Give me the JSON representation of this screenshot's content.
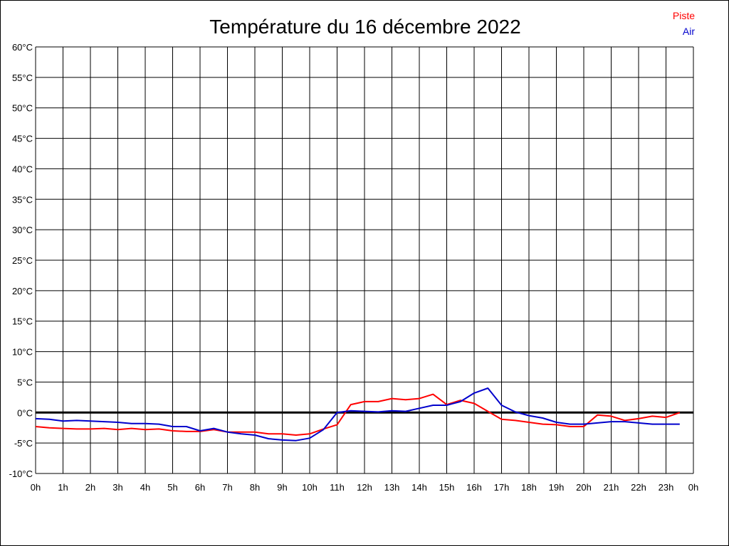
{
  "chart_data": {
    "type": "line",
    "title": "Température du 16 décembre 2022",
    "xlabel": "",
    "ylabel": "",
    "ylim": [
      -10,
      60
    ],
    "xlim": [
      0,
      24
    ],
    "grid": true,
    "legend_position": "top-right",
    "x_ticks": [
      "0h",
      "1h",
      "2h",
      "3h",
      "4h",
      "5h",
      "6h",
      "7h",
      "8h",
      "9h",
      "10h",
      "11h",
      "12h",
      "13h",
      "14h",
      "15h",
      "16h",
      "17h",
      "18h",
      "19h",
      "20h",
      "21h",
      "22h",
      "23h",
      "0h"
    ],
    "y_ticks": [
      "60°C",
      "55°C",
      "50°C",
      "45°C",
      "40°C",
      "35°C",
      "30°C",
      "25°C",
      "20°C",
      "15°C",
      "10°C",
      "5°C",
      "0°C",
      "-5°C",
      "-10°C"
    ],
    "x": [
      0,
      0.5,
      1,
      1.5,
      2,
      2.5,
      3,
      3.5,
      4,
      4.5,
      5,
      5.5,
      6,
      6.5,
      7,
      7.5,
      8,
      8.5,
      9,
      9.5,
      10,
      10.5,
      11,
      11.5,
      12,
      12.5,
      13,
      13.5,
      14,
      14.5,
      15,
      15.5,
      16,
      16.5,
      17,
      17.5,
      18,
      18.5,
      19,
      19.5,
      20,
      20.5,
      21,
      21.5,
      22,
      22.5,
      23,
      23.5
    ],
    "series": [
      {
        "name": "Piste",
        "color": "#ff0000",
        "values": [
          -2.3,
          -2.5,
          -2.6,
          -2.7,
          -2.7,
          -2.6,
          -2.8,
          -2.6,
          -2.8,
          -2.7,
          -3.0,
          -3.1,
          -3.1,
          -2.8,
          -3.2,
          -3.2,
          -3.2,
          -3.5,
          -3.5,
          -3.7,
          -3.5,
          -2.7,
          -2.0,
          1.3,
          1.8,
          1.8,
          2.3,
          2.1,
          2.3,
          3.0,
          1.3,
          2.0,
          1.5,
          0.2,
          -1.1,
          -1.3,
          -1.6,
          -1.9,
          -2.0,
          -2.3,
          -2.3,
          -0.4,
          -0.6,
          -1.3,
          -1.0,
          -0.6,
          -0.8,
          0.0
        ]
      },
      {
        "name": "Air",
        "color": "#0000cc",
        "values": [
          -1.0,
          -1.1,
          -1.4,
          -1.3,
          -1.4,
          -1.5,
          -1.6,
          -1.8,
          -1.8,
          -1.9,
          -2.3,
          -2.3,
          -3.0,
          -2.6,
          -3.2,
          -3.5,
          -3.7,
          -4.3,
          -4.5,
          -4.6,
          -4.2,
          -2.8,
          0.0,
          0.3,
          0.2,
          0.1,
          0.3,
          0.2,
          0.7,
          1.2,
          1.2,
          1.8,
          3.2,
          4.0,
          1.2,
          0.1,
          -0.5,
          -0.9,
          -1.6,
          -1.9,
          -1.9,
          -1.7,
          -1.5,
          -1.5,
          -1.7,
          -1.9,
          -1.9,
          -1.9
        ]
      }
    ]
  }
}
